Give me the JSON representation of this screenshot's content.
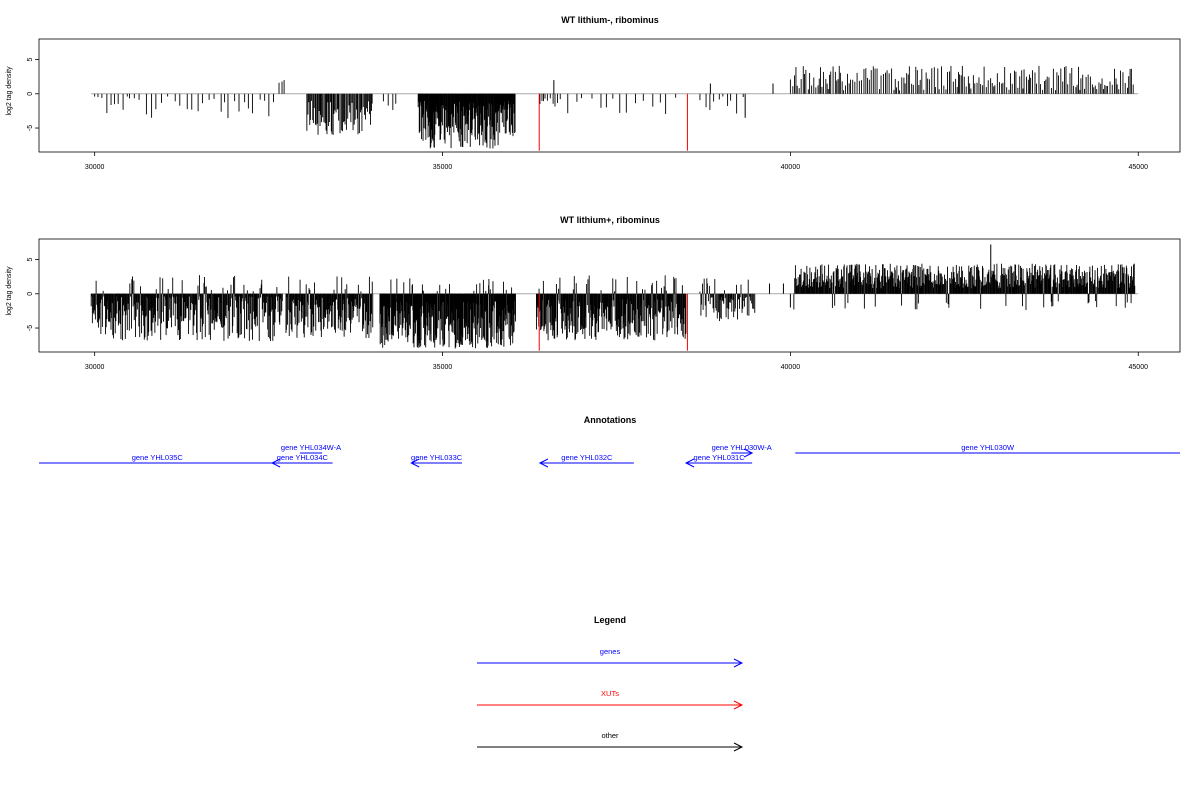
{
  "chart_data": [
    {
      "type": "bar",
      "title": "WT lithium-, ribominus",
      "xlabel": "",
      "ylabel": "log2 tag density",
      "xlim": [
        29200,
        45600
      ],
      "ylim": [
        -8.5,
        8
      ],
      "xticks": [
        30000,
        35000,
        40000,
        45000
      ],
      "yticks": [
        5,
        0,
        -5
      ],
      "baseline": {
        "from": 29950,
        "to": 45000,
        "color": "#aaaaaa"
      },
      "segments": [
        {
          "from": 30000,
          "to": 30500,
          "mean": -1.5,
          "amp": 1.5,
          "step": 60,
          "dir": "neg"
        },
        {
          "from": 30500,
          "to": 32600,
          "mean": -1.8,
          "amp": 1.8,
          "step": 80,
          "dir": "neg"
        },
        {
          "from": 32650,
          "to": 32750,
          "mean": 1.8,
          "amp": 0.6,
          "step": 40,
          "dir": "pos"
        },
        {
          "from": 33050,
          "to": 34000,
          "mean": -3.5,
          "amp": 2.5,
          "step": 14,
          "dir": "neg"
        },
        {
          "from": 34150,
          "to": 34350,
          "mean": -1.5,
          "amp": 1.0,
          "step": 70,
          "dir": "neg"
        },
        {
          "from": 34650,
          "to": 36050,
          "mean": -4.5,
          "amp": 3.5,
          "step": 7,
          "dir": "neg"
        },
        {
          "from": 36400,
          "to": 36700,
          "mean": -1.2,
          "amp": 0.8,
          "step": 35,
          "dir": "neg"
        },
        {
          "from": 36800,
          "to": 38400,
          "mean": -1.5,
          "amp": 1.5,
          "step": 110,
          "dir": "neg"
        },
        {
          "from": 38700,
          "to": 39350,
          "mean": -1.5,
          "amp": 1.5,
          "step": 70,
          "dir": "neg"
        },
        {
          "from": 40000,
          "to": 44950,
          "mean": 2.3,
          "amp": 1.8,
          "step": 26,
          "dir": "pos"
        }
      ],
      "extra_bars": [
        {
          "x": 36600,
          "y": 2.0
        },
        {
          "x": 38850,
          "y": 1.5
        },
        {
          "x": 39750,
          "y": 1.5
        },
        {
          "x": 39350,
          "y": -3.5
        }
      ],
      "highlights": [
        {
          "x": 36390,
          "y": -8.3,
          "color": "#ff0000"
        },
        {
          "x": 38520,
          "y": -8.3,
          "color": "#ff0000"
        }
      ]
    },
    {
      "type": "bar",
      "title": "WT lithium+, ribominus",
      "xlabel": "",
      "ylabel": "log2 tag density",
      "xlim": [
        29200,
        45600
      ],
      "ylim": [
        -8.5,
        8
      ],
      "xticks": [
        30000,
        35000,
        40000,
        45000
      ],
      "yticks": [
        5,
        0,
        -5
      ],
      "baseline": {
        "from": 29950,
        "to": 45000,
        "color": "#aaaaaa"
      },
      "segments": [
        {
          "from": 29950,
          "to": 32700,
          "mean": -3.5,
          "amp": 3.5,
          "step": 9,
          "dir": "mixed",
          "posfrac": 0.12,
          "posmax": 2.5
        },
        {
          "from": 32750,
          "to": 34000,
          "mean": -3.5,
          "amp": 3.0,
          "step": 9,
          "dir": "mixed",
          "posfrac": 0.1,
          "posmax": 2.5
        },
        {
          "from": 34100,
          "to": 36050,
          "mean": -4.5,
          "amp": 3.5,
          "step": 6,
          "dir": "mixed",
          "posfrac": 0.06,
          "posmax": 2.0
        },
        {
          "from": 36350,
          "to": 38500,
          "mean": -3.8,
          "amp": 3.0,
          "step": 8,
          "dir": "mixed",
          "posfrac": 0.1,
          "posmax": 2.5
        },
        {
          "from": 38700,
          "to": 39500,
          "mean": -2.2,
          "amp": 1.8,
          "step": 12,
          "dir": "mixed",
          "posfrac": 0.15,
          "posmax": 2.0
        },
        {
          "from": 40050,
          "to": 44950,
          "mean": 2.6,
          "amp": 1.8,
          "step": 9,
          "dir": "pos",
          "negfrac": 0.05,
          "negmin": -2.5
        }
      ],
      "extra_bars": [
        {
          "x": 39700,
          "y": 1.5
        },
        {
          "x": 39900,
          "y": 1.5
        },
        {
          "x": 40000,
          "y": -2.0
        },
        {
          "x": 42880,
          "y": 7.2
        }
      ],
      "highlights": [
        {
          "x": 36390,
          "y": -8.3,
          "color": "#ff0000"
        },
        {
          "x": 38520,
          "y": -8.3,
          "color": "#ff0000"
        }
      ]
    }
  ],
  "annotations": {
    "title": "Annotations",
    "genes": [
      {
        "label": "gene YHL035C",
        "from": 29200,
        "to": 32600,
        "dir": "none",
        "row": "low",
        "color": "#0000ff"
      },
      {
        "label": "gene YHL034W-A",
        "from": 32950,
        "to": 33270,
        "dir": "none",
        "row": "high",
        "color": "#0000ff"
      },
      {
        "label": "gene YHL034C",
        "from": 32550,
        "to": 33420,
        "dir": "left",
        "row": "low",
        "color": "#0000ff"
      },
      {
        "label": "gene YHL033C",
        "from": 34550,
        "to": 35280,
        "dir": "left",
        "row": "low",
        "color": "#0000ff"
      },
      {
        "label": "gene YHL032C",
        "from": 36400,
        "to": 37750,
        "dir": "left",
        "row": "low",
        "color": "#0000ff"
      },
      {
        "label": "gene YHL030W-A",
        "from": 39150,
        "to": 39450,
        "dir": "right",
        "row": "high",
        "color": "#0000ff"
      },
      {
        "label": "gene YHL031C",
        "from": 38500,
        "to": 39450,
        "dir": "left",
        "row": "low",
        "color": "#0000ff"
      },
      {
        "label": "gene YHL030W",
        "from": 40070,
        "to": 45600,
        "dir": "none",
        "row": "high",
        "color": "#0000ff"
      }
    ]
  },
  "legend": {
    "title": "Legend",
    "items": [
      {
        "label": "genes",
        "color": "#0000ff"
      },
      {
        "label": "XUTs",
        "color": "#ff0000"
      },
      {
        "label": "other",
        "color": "#000000"
      }
    ]
  }
}
